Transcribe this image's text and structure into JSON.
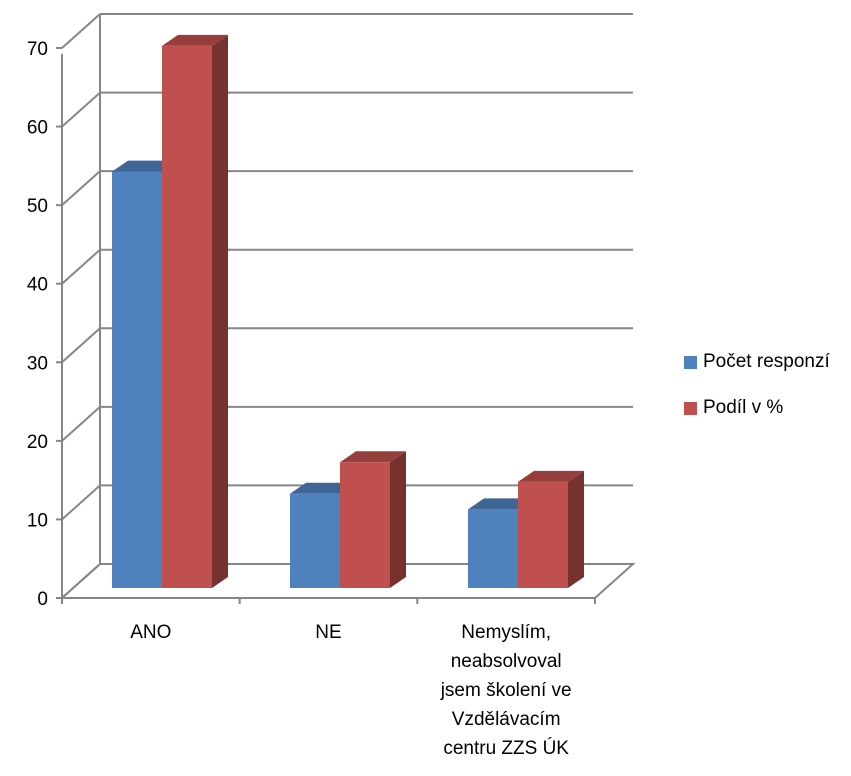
{
  "chart_data": {
    "type": "bar",
    "three_d": true,
    "categories": [
      [
        "ANO"
      ],
      [
        "NE"
      ],
      [
        "Nemyslím,",
        "neabsolvoval",
        "jsem školení ve",
        "Vzdělávacím",
        "centru ZZS ÚK"
      ]
    ],
    "series": [
      {
        "name": "Počet responzí",
        "values": [
          53,
          12,
          10
        ],
        "color": "#4F81BD"
      },
      {
        "name": "Podíl v %",
        "values": [
          69,
          16,
          13.5
        ],
        "color": "#C0504D"
      }
    ],
    "yticks": [
      0,
      10,
      20,
      30,
      40,
      50,
      60,
      70
    ],
    "ylim": [
      0,
      70
    ],
    "grid": true,
    "legend_position": "right"
  }
}
